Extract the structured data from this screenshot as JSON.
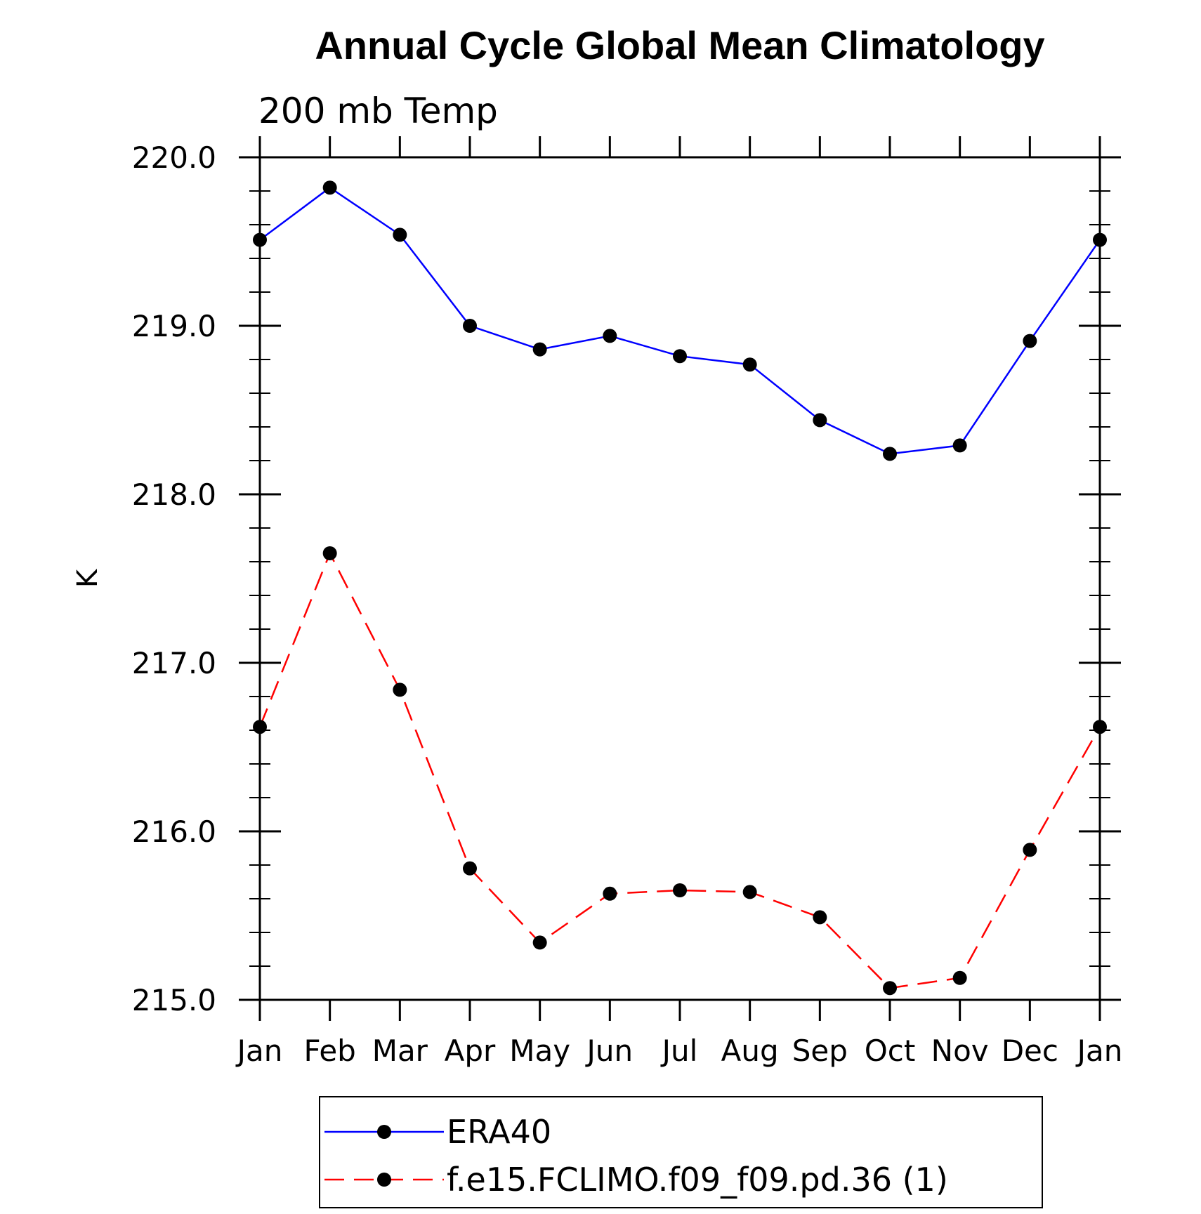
{
  "chart_data": {
    "type": "line",
    "title": "Annual Cycle Global Mean Climatology",
    "subtitle": "200 mb Temp",
    "xlabel": "",
    "ylabel": "K",
    "categories": [
      "Jan",
      "Feb",
      "Mar",
      "Apr",
      "May",
      "Jun",
      "Jul",
      "Aug",
      "Sep",
      "Oct",
      "Nov",
      "Dec",
      "Jan"
    ],
    "ylim": [
      215.0,
      220.0
    ],
    "yticks": [
      "215.0",
      "216.0",
      "217.0",
      "218.0",
      "219.0",
      "220.0"
    ],
    "grid": false,
    "legend_position": "bottom",
    "series": [
      {
        "name": "ERA40",
        "color": "#0000ff",
        "dash": "solid",
        "marker": "filled-circle",
        "values": [
          219.51,
          219.82,
          219.54,
          219.0,
          218.86,
          218.94,
          218.82,
          218.77,
          218.44,
          218.24,
          218.29,
          218.91,
          219.51
        ]
      },
      {
        "name": "f.e15.FCLIMO.f09_f09.pd.36 (1)",
        "color": "#ff0000",
        "dash": "dashed",
        "marker": "filled-circle",
        "values": [
          216.62,
          217.65,
          216.84,
          215.78,
          215.34,
          215.63,
          215.65,
          215.64,
          215.49,
          215.07,
          215.13,
          215.89,
          216.62
        ]
      }
    ]
  }
}
